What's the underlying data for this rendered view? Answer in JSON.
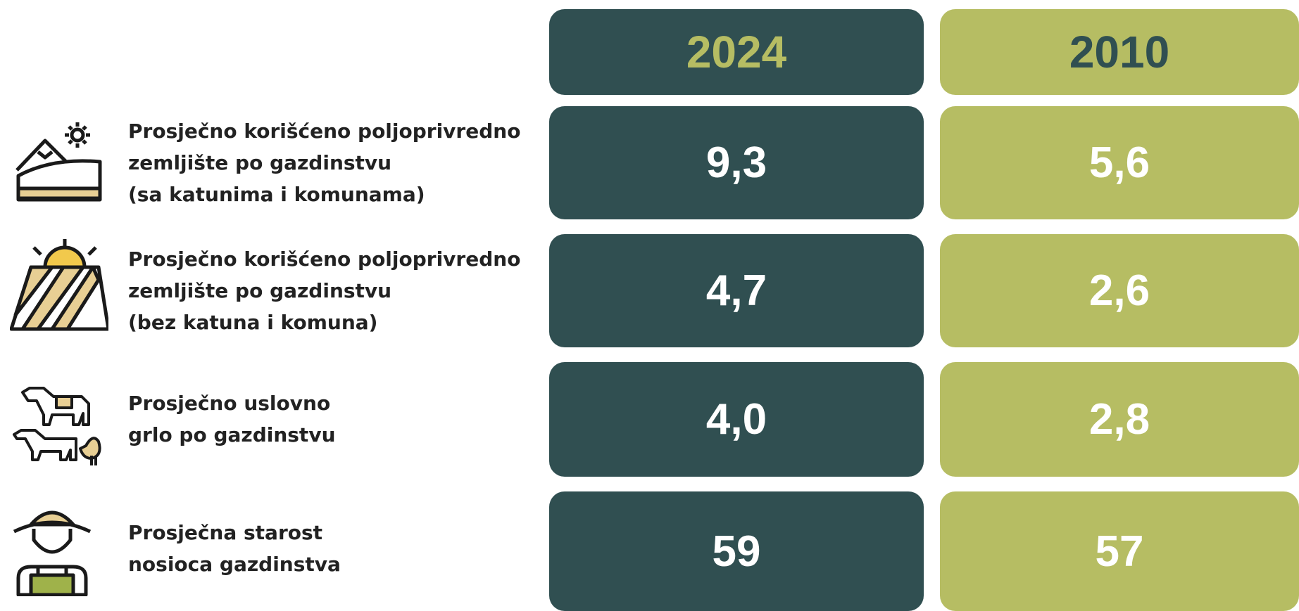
{
  "header": {
    "columns": [
      "2024",
      "2010"
    ]
  },
  "rows": [
    {
      "label": [
        "Prosječno korišćeno poljoprivredno",
        "zemljište po gazdinstvu",
        "(sa katunima i komunama)"
      ],
      "values": [
        "9,3",
        "5,6"
      ]
    },
    {
      "label": [
        "Prosječno korišćeno poljoprivredno",
        "zemljište po gazdinstvu",
        "(bez katuna i komuna)"
      ],
      "values": [
        "4,7",
        "2,6"
      ]
    },
    {
      "label": [
        "Prosječno uslovno",
        "grlo po gazdinstvu"
      ],
      "values": [
        "4,0",
        "2,8"
      ]
    },
    {
      "label": [
        "Prosječna starost",
        "nosioca gazdinstva"
      ],
      "values": [
        "59",
        "57"
      ]
    }
  ]
}
